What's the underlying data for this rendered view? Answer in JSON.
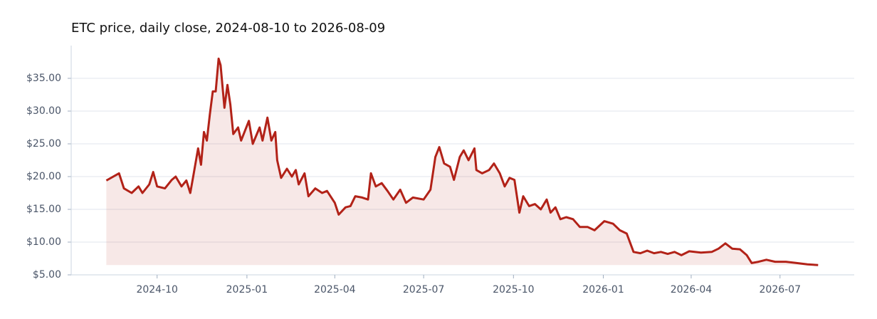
{
  "chart_data": {
    "type": "line",
    "title": "ETC price, daily close, 2024-08-10 to 2026-08-09",
    "x": [
      "2024-08-10",
      "2024-08-23",
      "2024-08-28",
      "2024-09-05",
      "2024-09-12",
      "2024-09-16",
      "2024-09-23",
      "2024-09-27",
      "2024-10-01",
      "2024-10-09",
      "2024-10-16",
      "2024-10-20",
      "2024-10-26",
      "2024-10-31",
      "2024-11-04",
      "2024-11-07",
      "2024-11-12",
      "2024-11-15",
      "2024-11-18",
      "2024-11-21",
      "2024-11-24",
      "2024-11-27",
      "2024-11-30",
      "2024-12-03",
      "2024-12-05",
      "2024-12-09",
      "2024-12-12",
      "2024-12-15",
      "2024-12-18",
      "2024-12-23",
      "2024-12-26",
      "2025-01-03",
      "2025-01-07",
      "2025-01-14",
      "2025-01-17",
      "2025-01-22",
      "2025-01-26",
      "2025-01-30",
      "2025-02-01",
      "2025-02-05",
      "2025-02-11",
      "2025-02-16",
      "2025-02-20",
      "2025-02-23",
      "2025-03-01",
      "2025-03-05",
      "2025-03-12",
      "2025-03-19",
      "2025-03-24",
      "2025-04-01",
      "2025-04-05",
      "2025-04-12",
      "2025-04-17",
      "2025-04-22",
      "2025-04-29",
      "2025-05-05",
      "2025-05-08",
      "2025-05-13",
      "2025-05-19",
      "2025-05-25",
      "2025-05-31",
      "2025-06-07",
      "2025-06-13",
      "2025-06-20",
      "2025-07-01",
      "2025-07-08",
      "2025-07-13",
      "2025-07-17",
      "2025-07-22",
      "2025-07-28",
      "2025-08-01",
      "2025-08-07",
      "2025-08-11",
      "2025-08-16",
      "2025-08-22",
      "2025-08-24",
      "2025-08-30",
      "2025-09-06",
      "2025-09-11",
      "2025-09-17",
      "2025-09-22",
      "2025-09-27",
      "2025-10-02",
      "2025-10-07",
      "2025-10-11",
      "2025-10-17",
      "2025-10-23",
      "2025-10-29",
      "2025-11-04",
      "2025-11-08",
      "2025-11-13",
      "2025-11-18",
      "2025-11-24",
      "2025-12-01",
      "2025-12-08",
      "2025-12-16",
      "2025-12-23",
      "2026-01-02",
      "2026-01-11",
      "2026-01-18",
      "2026-01-25",
      "2026-02-01",
      "2026-02-08",
      "2026-02-15",
      "2026-02-22",
      "2026-03-01",
      "2026-03-08",
      "2026-03-15",
      "2026-03-22",
      "2026-03-30",
      "2026-04-11",
      "2026-04-22",
      "2026-04-29",
      "2026-05-06",
      "2026-05-13",
      "2026-05-21",
      "2026-05-28",
      "2026-06-02",
      "2026-06-09",
      "2026-06-17",
      "2026-06-26",
      "2026-07-07",
      "2026-07-18",
      "2026-07-29",
      "2026-08-09"
    ],
    "values": [
      19.4,
      20.5,
      18.2,
      17.5,
      18.5,
      17.5,
      18.8,
      20.7,
      18.5,
      18.2,
      19.5,
      20.0,
      18.5,
      19.4,
      17.5,
      20.0,
      24.3,
      21.8,
      26.8,
      25.5,
      29.5,
      33.0,
      33.0,
      38.0,
      37.0,
      30.5,
      34.0,
      31.0,
      26.5,
      27.5,
      25.5,
      28.5,
      25.0,
      27.5,
      25.5,
      29.0,
      25.5,
      26.8,
      22.5,
      19.8,
      21.2,
      20.0,
      21.0,
      18.8,
      20.5,
      17.0,
      18.2,
      17.5,
      17.8,
      16.0,
      14.2,
      15.3,
      15.5,
      17.0,
      16.8,
      16.5,
      20.5,
      18.5,
      19.0,
      17.8,
      16.5,
      18.0,
      16.0,
      16.8,
      16.5,
      18.0,
      23.0,
      24.5,
      22.0,
      21.5,
      19.5,
      23.0,
      24.0,
      22.5,
      24.3,
      21.0,
      20.5,
      21.0,
      22.0,
      20.5,
      18.5,
      19.8,
      19.5,
      14.5,
      17.0,
      15.5,
      15.8,
      15.0,
      16.5,
      14.5,
      15.3,
      13.5,
      13.8,
      13.5,
      12.3,
      12.3,
      11.8,
      13.2,
      12.8,
      11.8,
      11.3,
      8.5,
      8.3,
      8.7,
      8.3,
      8.5,
      8.2,
      8.5,
      8.0,
      8.6,
      8.4,
      8.5,
      9.0,
      9.8,
      9.0,
      8.9,
      8.0,
      6.8,
      7.0,
      7.3,
      7.0,
      7.0,
      6.8,
      6.6,
      6.5
    ],
    "color": "#b22218",
    "xlim": [
      "2024-07-05",
      "2026-09-15"
    ],
    "xticks": [
      {
        "value": "2024-10-01",
        "label": "2024-10"
      },
      {
        "value": "2025-01-01",
        "label": "2025-01"
      },
      {
        "value": "2025-04-01",
        "label": "2025-04"
      },
      {
        "value": "2025-07-01",
        "label": "2025-07"
      },
      {
        "value": "2025-10-01",
        "label": "2025-10"
      },
      {
        "value": "2026-01-01",
        "label": "2026-01"
      },
      {
        "value": "2026-04-01",
        "label": "2026-04"
      },
      {
        "value": "2026-07-01",
        "label": "2026-07"
      }
    ],
    "ylim": [
      5,
      40
    ],
    "yticks": [
      {
        "value": 5,
        "label": "$5.00"
      },
      {
        "value": 10,
        "label": "$10.00"
      },
      {
        "value": 15,
        "label": "$15.00"
      },
      {
        "value": 20,
        "label": "$20.00"
      },
      {
        "value": 25,
        "label": "$25.00"
      },
      {
        "value": 30,
        "label": "$30.00"
      },
      {
        "value": 35,
        "label": "$35.00"
      }
    ],
    "grid": true
  }
}
